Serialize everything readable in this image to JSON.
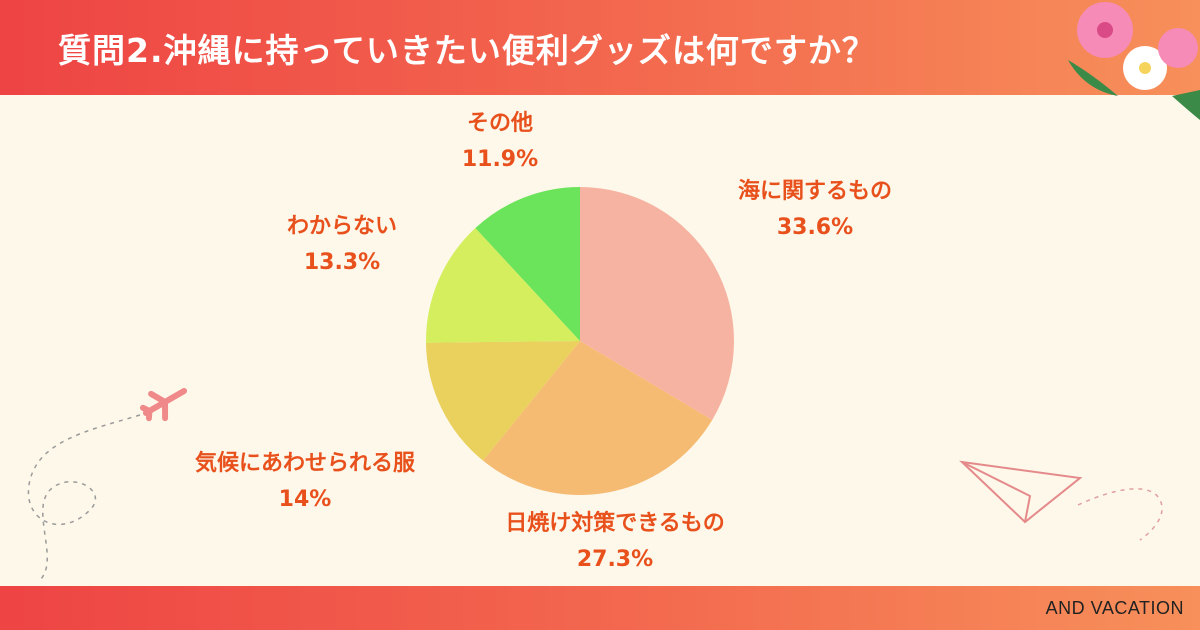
{
  "title": "質問2.沖縄に持っていきたい便利グッズは何ですか？",
  "brand": "AND VACATION",
  "label_color": "#e8501c",
  "chart_data": {
    "type": "pie",
    "title": "質問2.沖縄に持っていきたい便利グッズは何ですか？",
    "slices": [
      {
        "label": "海に関するもの",
        "value": 33.6,
        "display": "33.6%",
        "color": "#f7b3a1"
      },
      {
        "label": "日焼け対策できるもの",
        "value": 27.3,
        "display": "27.3%",
        "color": "#f6bb73"
      },
      {
        "label": "気候にあわせられる服",
        "value": 14.0,
        "display": "14%",
        "color": "#ead05c"
      },
      {
        "label": "わからない",
        "value": 13.3,
        "display": "13.3%",
        "color": "#d4ee5e"
      },
      {
        "label": "その他",
        "value": 11.9,
        "display": "11.9%",
        "color": "#6be35a"
      }
    ],
    "start": "12 o'clock, clockwise",
    "legend": "none (labels beside slices)"
  }
}
